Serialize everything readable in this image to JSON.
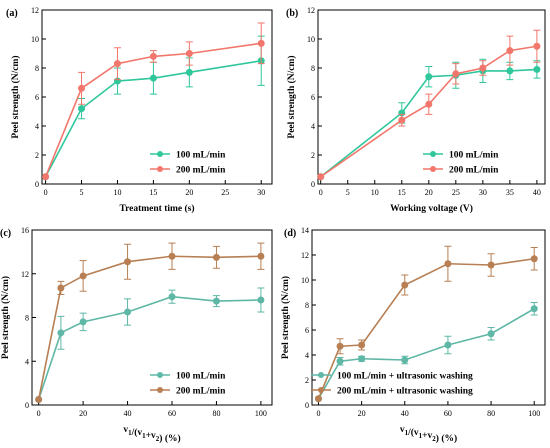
{
  "colors": {
    "green": "#2fc79b",
    "red": "#f2766b",
    "teal": "#5fb7a6",
    "brown": "#b77f53"
  },
  "chart_data": [
    {
      "panel": "(a)",
      "type": "line",
      "xlabel": "Treatment time (s)",
      "ylabel": "Peel strength (N/cm)",
      "xlim": [
        -0.5,
        31.5
      ],
      "ylim": [
        0,
        12
      ],
      "xticks": [
        "0",
        "5",
        "10",
        "15",
        "20",
        "25",
        "30"
      ],
      "yticks": [
        "0",
        "2",
        "4",
        "6",
        "8",
        "10",
        "12"
      ],
      "legend": "bottom-right",
      "series": [
        {
          "name": "100 mL/min",
          "color": "green",
          "x": [
            0,
            5,
            10,
            15,
            20,
            30
          ],
          "y": [
            0.5,
            5.2,
            7.1,
            7.3,
            7.7,
            8.5
          ],
          "err": [
            0,
            0.7,
            0.9,
            1.1,
            1.0,
            1.7
          ]
        },
        {
          "name": "200 mL/min",
          "color": "red",
          "x": [
            0,
            5,
            10,
            15,
            20,
            30
          ],
          "y": [
            0.5,
            6.6,
            8.3,
            8.8,
            9.0,
            9.7
          ],
          "err": [
            0,
            1.1,
            1.1,
            0.4,
            0.8,
            1.4
          ]
        }
      ]
    },
    {
      "panel": "(b)",
      "type": "line",
      "xlabel": "Working voltage (V)",
      "ylabel": "Peel strength (N/cm)",
      "xlim": [
        -0.5,
        41.5
      ],
      "ylim": [
        0,
        12
      ],
      "xticks": [
        "0",
        "5",
        "10",
        "15",
        "20",
        "25",
        "30",
        "35",
        "40"
      ],
      "yticks": [
        "0",
        "2",
        "4",
        "6",
        "8",
        "10",
        "12"
      ],
      "legend": "bottom-right",
      "series": [
        {
          "name": "100 mL/min",
          "color": "green",
          "x": [
            0,
            15,
            20,
            25,
            30,
            35,
            40
          ],
          "y": [
            0.5,
            4.9,
            7.4,
            7.5,
            7.8,
            7.8,
            7.9
          ],
          "err": [
            0,
            0.7,
            0.7,
            0.9,
            0.8,
            0.6,
            0.6
          ]
        },
        {
          "name": "200 mL/min",
          "color": "red",
          "x": [
            0,
            15,
            20,
            25,
            30,
            35,
            40
          ],
          "y": [
            0.5,
            4.4,
            5.5,
            7.6,
            8.0,
            9.2,
            9.5
          ],
          "err": [
            0,
            0.4,
            0.7,
            0.7,
            0.5,
            1.0,
            1.1
          ]
        }
      ]
    },
    {
      "panel": "(c)",
      "type": "line",
      "xlabel": "v1/(v1+v2)  (%)",
      "ylabel": "Peel strength (N/cm)",
      "xlim": [
        -3,
        105
      ],
      "ylim": [
        0,
        16
      ],
      "xticks": [
        "0",
        "20",
        "40",
        "60",
        "80",
        "100"
      ],
      "yticks": [
        "0",
        "4",
        "8",
        "12",
        "16"
      ],
      "legend": "bottom-right",
      "series": [
        {
          "name": "100 mL/min",
          "color": "teal",
          "x": [
            0,
            10,
            20,
            40,
            60,
            80,
            100
          ],
          "y": [
            0.5,
            6.6,
            7.6,
            8.5,
            9.9,
            9.5,
            9.6
          ],
          "err": [
            0,
            1.5,
            0.8,
            1.2,
            0.6,
            0.5,
            1.1
          ]
        },
        {
          "name": "200 mL/min",
          "color": "brown",
          "x": [
            0,
            10,
            20,
            40,
            60,
            80,
            100
          ],
          "y": [
            0.5,
            10.7,
            11.8,
            13.1,
            13.6,
            13.5,
            13.6
          ],
          "err": [
            0,
            0.6,
            1.4,
            1.6,
            1.2,
            1.0,
            1.2
          ]
        }
      ]
    },
    {
      "panel": "(d)",
      "type": "line",
      "xlabel": "v1/(v1+v2)  (%)",
      "ylabel": "Peel strength (N/cm)",
      "xlim": [
        -3,
        105
      ],
      "ylim": [
        0,
        14
      ],
      "xticks": [
        "0",
        "20",
        "40",
        "60",
        "80",
        "100"
      ],
      "yticks": [
        "0",
        "2",
        "4",
        "6",
        "8",
        "10",
        "12",
        "14"
      ],
      "legend": "bottom-right",
      "series": [
        {
          "name": "100 mL/min + ultrasonic washing",
          "color": "teal",
          "x": [
            0,
            10,
            20,
            40,
            60,
            80,
            100
          ],
          "y": [
            0.5,
            3.5,
            3.7,
            3.6,
            4.8,
            5.7,
            7.7
          ],
          "err": [
            0,
            0.3,
            0.2,
            0.3,
            0.7,
            0.5,
            0.5
          ]
        },
        {
          "name": "200 mL/min + ultrasonic washing",
          "color": "brown",
          "x": [
            0,
            10,
            20,
            40,
            60,
            80,
            100
          ],
          "y": [
            0.5,
            4.7,
            4.8,
            9.6,
            11.3,
            11.2,
            11.7
          ],
          "err": [
            0,
            0.6,
            0.4,
            0.8,
            1.4,
            0.9,
            0.9
          ]
        }
      ]
    }
  ]
}
